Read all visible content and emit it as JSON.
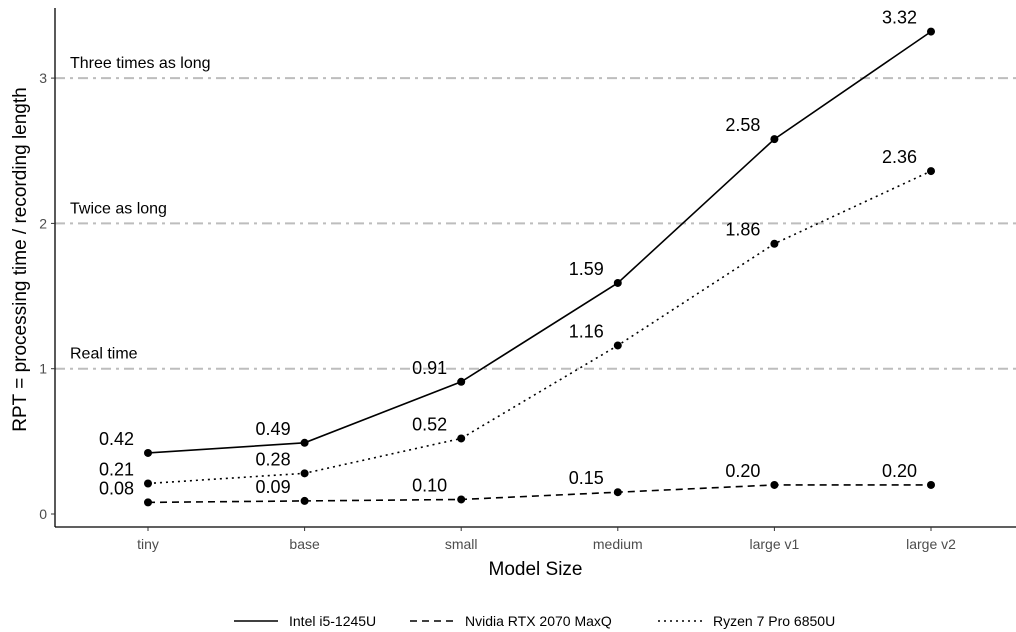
{
  "chart_data": {
    "type": "line",
    "title": "",
    "xlabel": "Model Size",
    "ylabel": "RPT = processing time / recording length",
    "categories": [
      "tiny",
      "base",
      "small",
      "medium",
      "large v1",
      "large v2"
    ],
    "ylim": [
      -0.05,
      3.5
    ],
    "yticks": [
      "0",
      "1",
      "2",
      "3"
    ],
    "grid": false,
    "legend_position": "bottom",
    "reference_lines": [
      {
        "y": 1,
        "label": "Real time",
        "style": "dashdot",
        "color": "#bdbdbd"
      },
      {
        "y": 2,
        "label": "Twice as long",
        "style": "dashdot",
        "color": "#bdbdbd"
      },
      {
        "y": 3,
        "label": "Three times as long",
        "style": "dashdot",
        "color": "#bdbdbd"
      }
    ],
    "series": [
      {
        "name": "Intel i5-1245U",
        "line_style": "solid",
        "values": [
          0.42,
          0.49,
          0.91,
          1.59,
          2.58,
          3.32
        ],
        "labels": [
          "0.42",
          "0.49",
          "0.91",
          "1.59",
          "2.58",
          "3.32"
        ]
      },
      {
        "name": "Nvidia RTX 2070 MaxQ",
        "line_style": "dashed",
        "values": [
          0.08,
          0.09,
          0.1,
          0.15,
          0.2,
          0.2
        ],
        "labels": [
          "0.08",
          "0.09",
          "0.10",
          "0.15",
          "0.20",
          "0.20"
        ]
      },
      {
        "name": "Ryzen 7 Pro 6850U",
        "line_style": "dotted",
        "values": [
          0.21,
          0.28,
          0.52,
          1.16,
          1.86,
          2.36
        ],
        "labels": [
          "0.21",
          "0.28",
          "0.52",
          "1.16",
          "1.86",
          "2.36"
        ]
      }
    ],
    "colors": {
      "line": "#000000",
      "reference": "#bdbdbd",
      "axis": "#000000",
      "tick_text": "#4d4d4d"
    }
  }
}
